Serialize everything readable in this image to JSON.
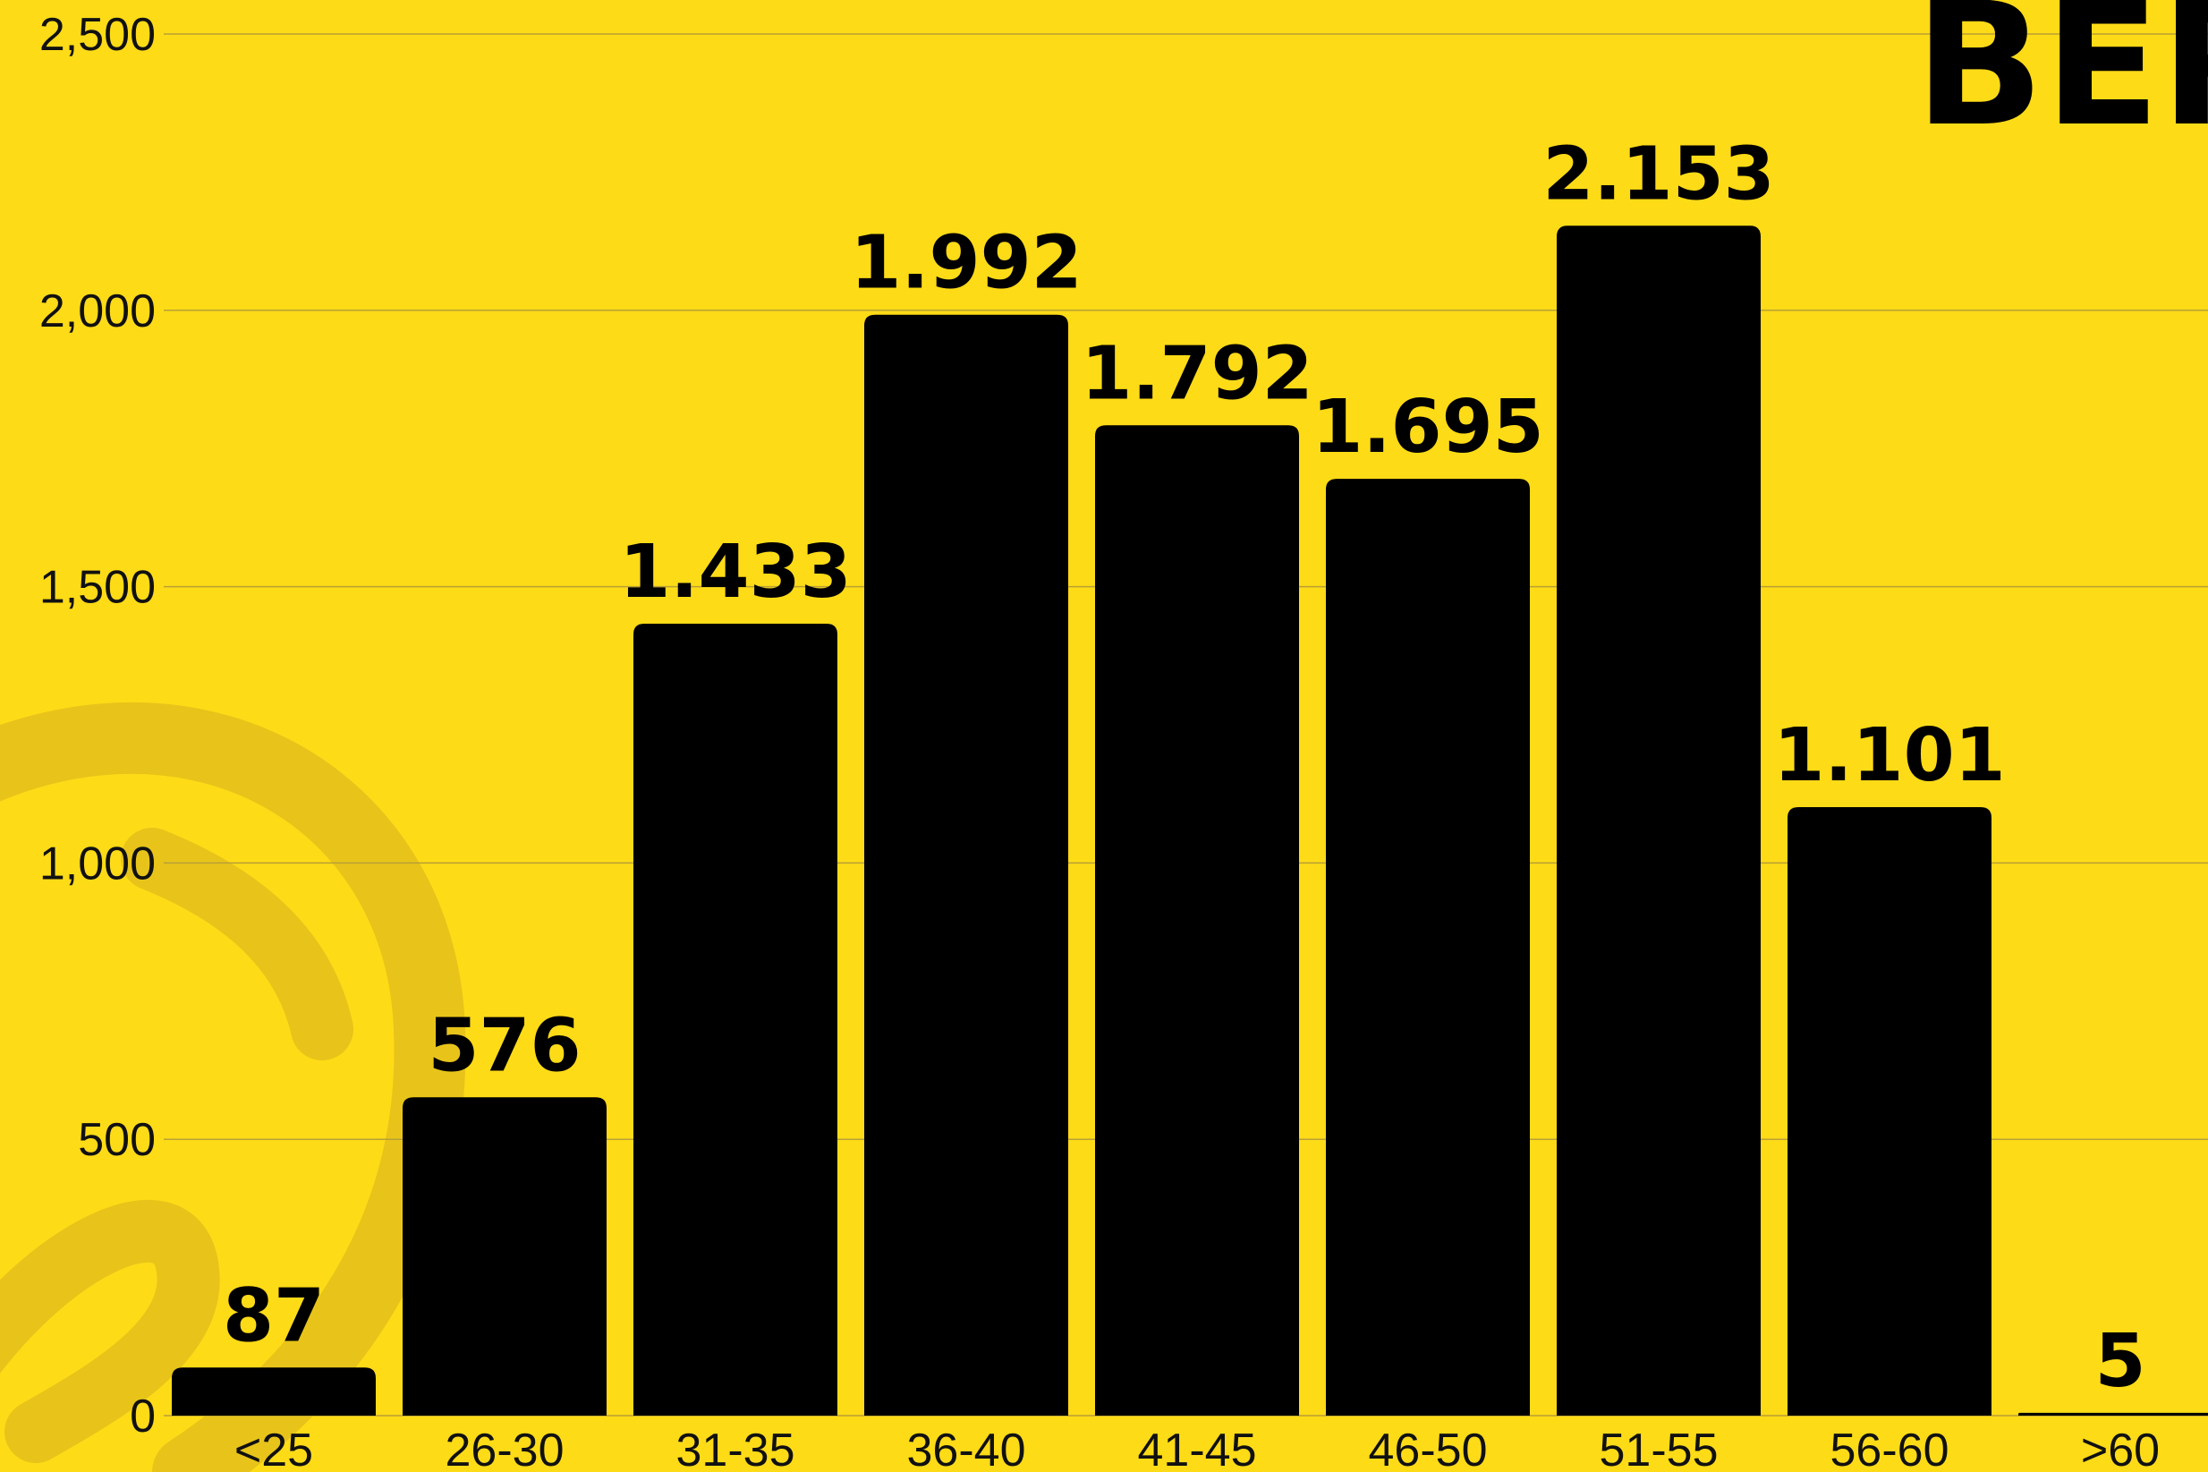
{
  "chart_data": {
    "type": "bar",
    "title": "BER",
    "xlabel": "",
    "ylabel": "",
    "categories": [
      "<25",
      "26-30",
      "31-35",
      "36-40",
      "41-45",
      "46-50",
      "51-55",
      "56-60",
      ">60"
    ],
    "values": [
      87,
      576,
      1433,
      1992,
      1792,
      1695,
      2153,
      1101,
      5
    ],
    "value_labels": [
      "87",
      "576",
      "1.433",
      "1.992",
      "1.792",
      "1.695",
      "2.153",
      "1.101",
      "5"
    ],
    "ylim": [
      0,
      2500
    ],
    "yticks": [
      0,
      500,
      1000,
      1500,
      2000,
      2500
    ],
    "ytick_labels": [
      "0",
      "500",
      "1,000",
      "1,500",
      "2,000",
      "2,500"
    ],
    "grid": true,
    "legend": "none"
  },
  "colors": {
    "background": "#FEDB17",
    "bar": "#000000",
    "gridline": "#B8A035",
    "decoration": "#E8C41A"
  },
  "decoration": {
    "icon": "pretzel-icon"
  }
}
